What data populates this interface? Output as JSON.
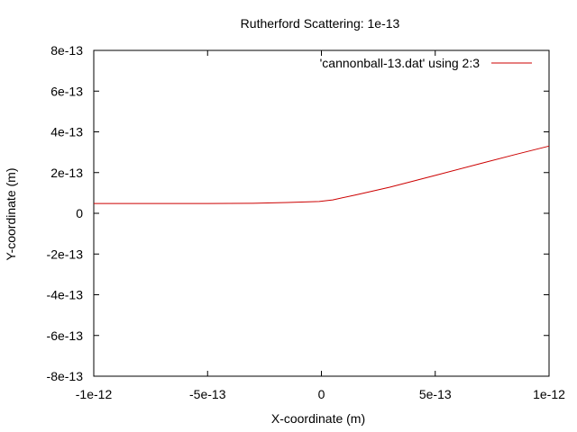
{
  "chart_data": {
    "type": "line",
    "title": "Rutherford Scattering: 1e-13",
    "xlabel": "X-coordinate (m)",
    "ylabel": "Y-coordinate (m)",
    "xlim": [
      -1e-12,
      1e-12
    ],
    "ylim": [
      -8e-13,
      8e-13
    ],
    "x_ticks": [
      {
        "value": -1e-12,
        "label": "-1e-12"
      },
      {
        "value": -5e-13,
        "label": "-5e-13"
      },
      {
        "value": 0,
        "label": "0"
      },
      {
        "value": 5e-13,
        "label": "5e-13"
      },
      {
        "value": 1e-12,
        "label": "1e-12"
      }
    ],
    "y_ticks": [
      {
        "value": 8e-13,
        "label": "8e-13"
      },
      {
        "value": 6e-13,
        "label": "6e-13"
      },
      {
        "value": 4e-13,
        "label": "4e-13"
      },
      {
        "value": 2e-13,
        "label": "2e-13"
      },
      {
        "value": 0,
        "label": "0"
      },
      {
        "value": -2e-13,
        "label": "-2e-13"
      },
      {
        "value": -4e-13,
        "label": "-4e-13"
      },
      {
        "value": -6e-13,
        "label": "-6e-13"
      },
      {
        "value": -8e-13,
        "label": "-8e-13"
      }
    ],
    "legend_position": "top-right",
    "grid": false,
    "series": [
      {
        "name": "'cannonball-13.dat' using 2:3",
        "color": "#cc0000",
        "points": [
          [
            -1e-12,
            4.8e-14
          ],
          [
            -5e-13,
            4.8e-14
          ],
          [
            -3e-13,
            4.9e-14
          ],
          [
            -1.5e-13,
            5.3e-14
          ],
          [
            -1e-14,
            5.8e-14
          ],
          [
            5e-14,
            6.6e-14
          ],
          [
            1.5e-13,
            9e-14
          ],
          [
            3e-13,
            1.28e-13
          ],
          [
            5e-13,
            1.86e-13
          ],
          [
            7e-13,
            2.45e-13
          ],
          [
            8.5e-13,
            2.88e-13
          ],
          [
            1e-12,
            3.3e-13
          ]
        ]
      }
    ]
  }
}
